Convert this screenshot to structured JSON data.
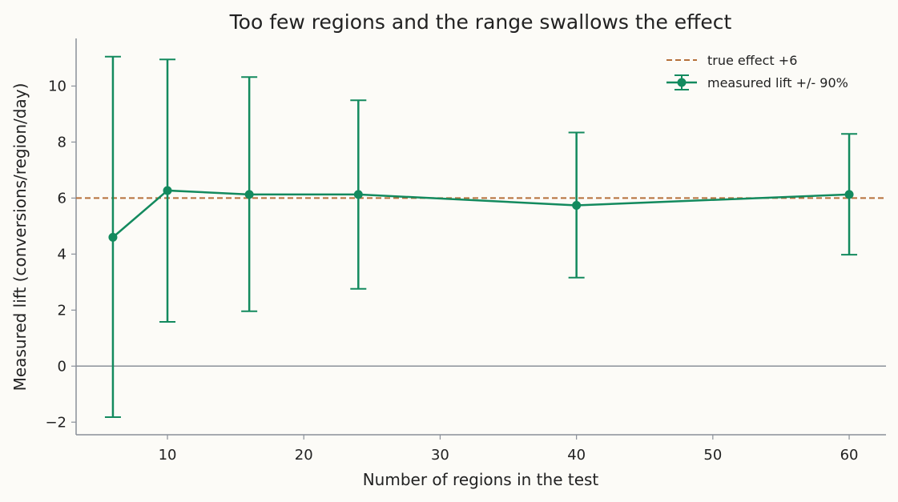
{
  "chart_data": {
    "type": "line",
    "title": "Too few regions and the range swallows the effect",
    "xlabel": "Number of regions in the test",
    "ylabel": "Measured lift (conversions/region/day)",
    "xlim": [
      3.3,
      62.7
    ],
    "ylim": [
      -2.45,
      11.7
    ],
    "xticks": [
      10,
      20,
      30,
      40,
      50,
      60
    ],
    "yticks": [
      -2,
      0,
      2,
      4,
      6,
      8,
      10
    ],
    "ytick_labels": [
      "−2",
      "0",
      "2",
      "4",
      "6",
      "8",
      "10"
    ],
    "zero_line": 0,
    "reference_line": {
      "name": "true effect +6",
      "y": 6,
      "color": "#b5703a",
      "style": "dashed"
    },
    "series": [
      {
        "name": "measured lift +/- 90%",
        "color": "#138a5e",
        "x": [
          6,
          10,
          16,
          24,
          40,
          60
        ],
        "y": [
          4.6,
          6.27,
          6.13,
          6.13,
          5.74,
          6.13
        ],
        "lower": [
          -1.82,
          1.58,
          1.96,
          2.76,
          3.16,
          3.98
        ],
        "upper": [
          11.05,
          10.95,
          10.32,
          9.49,
          8.34,
          8.29
        ]
      }
    ],
    "legend_position": "top-right",
    "grid": false
  }
}
